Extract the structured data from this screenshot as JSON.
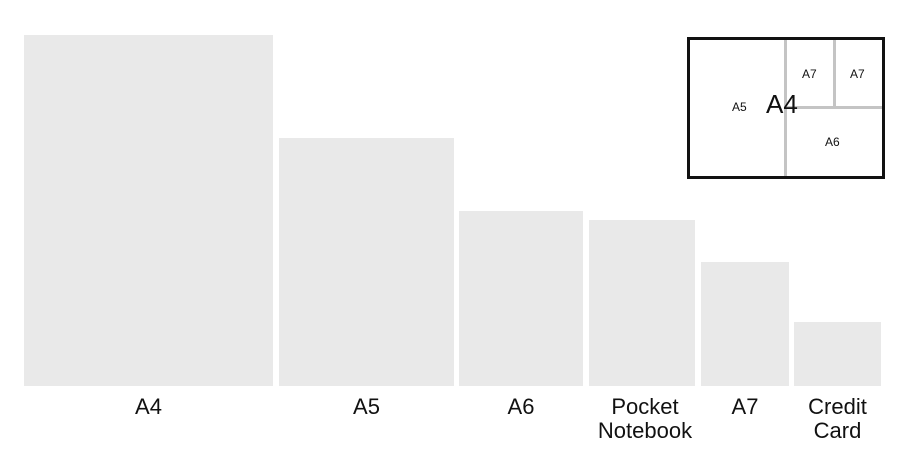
{
  "sizes": [
    {
      "label": "A4"
    },
    {
      "label": "A5"
    },
    {
      "label": "A6"
    },
    {
      "label": "Pocket\nNotebook"
    },
    {
      "label": "A7"
    },
    {
      "label": "Credit\nCard"
    }
  ],
  "inset": {
    "a4": "A4",
    "a5": "A5",
    "a6": "A6",
    "a7_left": "A7",
    "a7_right": "A7"
  },
  "colors": {
    "rect_fill": "#e9e9e9",
    "inset_border": "#111111",
    "divider": "#c4c4c4"
  }
}
